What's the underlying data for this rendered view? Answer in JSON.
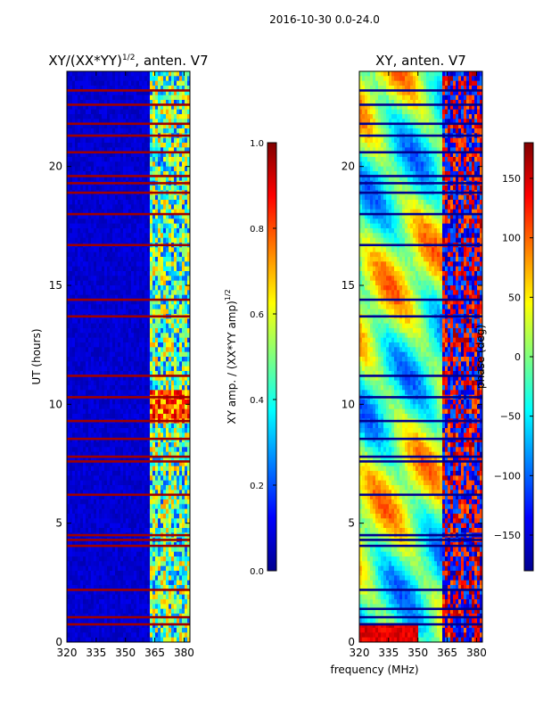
{
  "page_title": "2016-10-30 0.0-24.0",
  "chart_data": [
    {
      "type": "heatmap",
      "title_main": "XY/(XX*YY)",
      "title_sup": "1/2",
      "title_tail": ", anten. V7",
      "xlabel": "",
      "ylabel": "UT (hours)",
      "xlim": [
        320,
        383
      ],
      "ylim": [
        0,
        24
      ],
      "xticks": [
        320,
        335,
        350,
        365,
        380
      ],
      "yticks": [
        0,
        5,
        10,
        15,
        20
      ],
      "rfi_band_mhz": [
        362,
        383
      ],
      "saturated_rows_hours": [
        0.75,
        1.05,
        2.2,
        4.05,
        4.3,
        4.5,
        6.2,
        7.6,
        7.8,
        8.55,
        9.3,
        10.3,
        11.2,
        13.7,
        14.4,
        16.7,
        18.0,
        18.9,
        19.3,
        19.6,
        20.6,
        21.3,
        21.8,
        22.6,
        23.2
      ],
      "colorbar": {
        "label_main": "XY amp. / (XX*YY amp)",
        "label_sup": "1/2",
        "range": [
          0.0,
          1.0
        ],
        "ticks": [
          "0.0",
          "0.2",
          "0.4",
          "0.6",
          "0.8",
          "1.0"
        ]
      }
    },
    {
      "type": "heatmap",
      "title": "XY, anten. V7",
      "xlabel": "frequency (MHz)",
      "ylabel": "",
      "xlim": [
        320,
        383
      ],
      "ylim": [
        0,
        24
      ],
      "xticks": [
        320,
        335,
        350,
        365,
        380
      ],
      "yticks": [
        0,
        5,
        10,
        15,
        20
      ],
      "rfi_band_mhz": [
        362,
        383
      ],
      "flagged_rows_hours": [
        0.75,
        1.05,
        1.4,
        2.2,
        4.05,
        4.3,
        4.5,
        6.2,
        7.6,
        7.8,
        8.55,
        9.3,
        10.3,
        11.2,
        13.7,
        14.4,
        16.7,
        18.0,
        18.9,
        19.3,
        19.6,
        20.6,
        21.3,
        21.8,
        22.6,
        23.2
      ],
      "colorbar": {
        "label": "phase (deg)",
        "range": [
          -180,
          180
        ],
        "ticks": [
          "150",
          "100",
          "50",
          "0",
          "−50",
          "−100",
          "−150"
        ],
        "tick_values": [
          150,
          100,
          50,
          0,
          -50,
          -100,
          -150
        ]
      }
    }
  ],
  "colors": {
    "jet_dark_blue": "#00008f",
    "jet_blue": "#0000ff",
    "jet_cyan": "#00ffff",
    "jet_green": "#7fff7f",
    "jet_yellow": "#ffff00",
    "jet_red": "#ff0000",
    "jet_dark_red": "#800000"
  }
}
